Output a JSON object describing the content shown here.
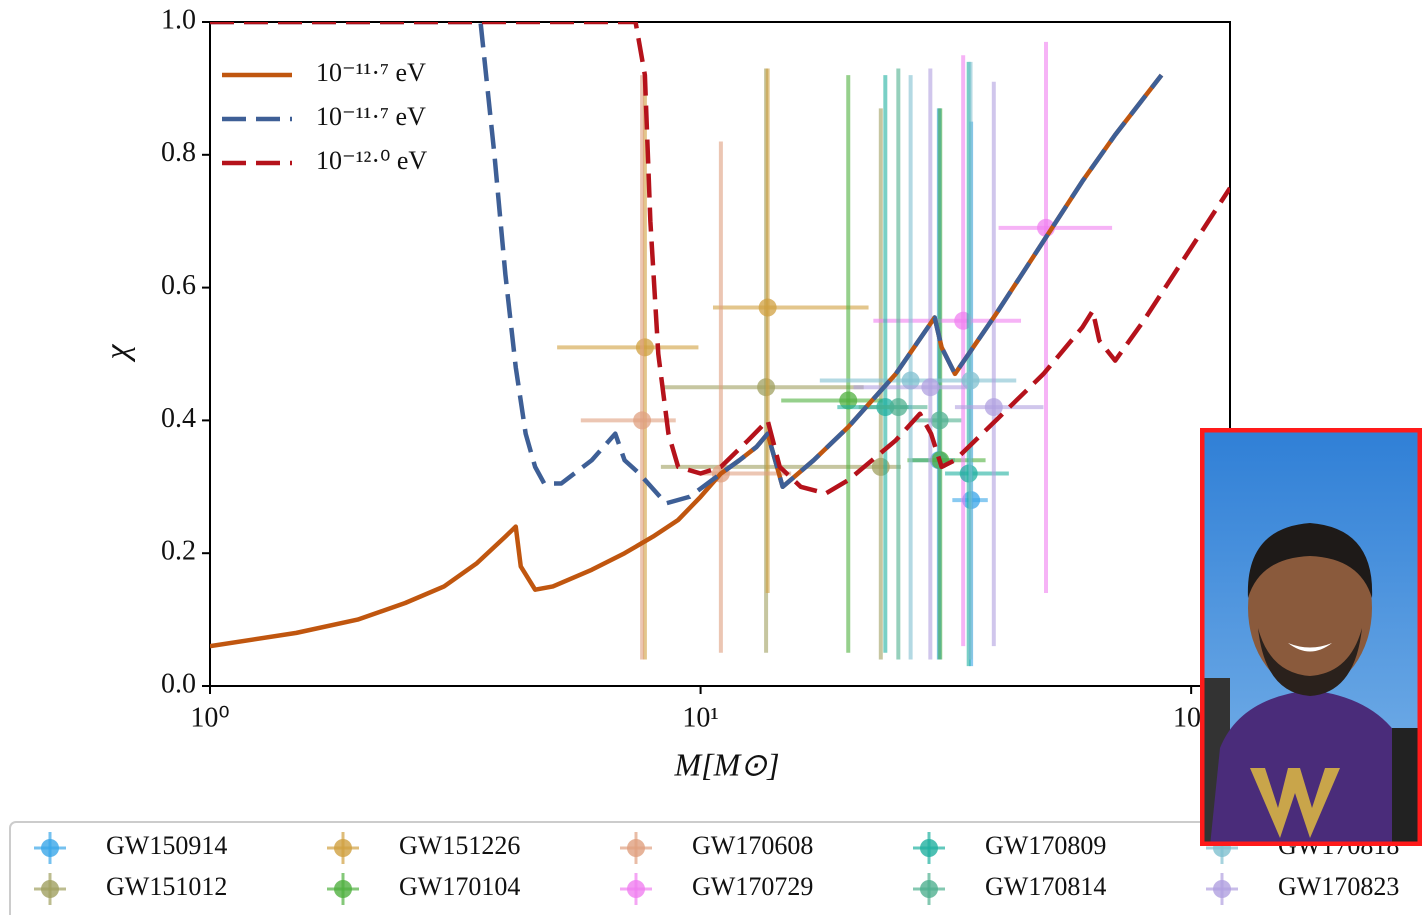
{
  "chart_data": {
    "type": "errorbar",
    "x_label": "M[M⊙]",
    "y_label": "χ",
    "log_x": true,
    "xlim": [
      1,
      120
    ],
    "ylim": [
      0,
      1
    ],
    "xticks": [
      {
        "value": 1,
        "label": "10⁰"
      },
      {
        "value": 10,
        "label": "10¹"
      },
      {
        "value": 100,
        "label": "10²"
      }
    ],
    "yticks": [
      {
        "value": 0,
        "label": "0.0"
      },
      0.2,
      0.4,
      0.6,
      0.8,
      {
        "value": 1,
        "label": "1.0"
      }
    ],
    "lines_legend": "upper left",
    "points_legend": "bottom",
    "lines": [
      {
        "name": "10⁻¹¹·⁷ eV",
        "color": "#c0560f",
        "linestyle": "solid",
        "x": [
          1,
          1.5,
          2,
          2.5,
          3,
          3.5,
          4,
          4.2,
          4.3,
          4.6,
          5,
          6,
          7,
          8,
          9,
          10,
          11,
          12,
          13,
          13.7,
          14.7,
          17,
          20,
          25,
          30,
          31,
          33,
          40,
          50,
          60,
          70,
          87
        ],
        "values": [
          0.06,
          0.08,
          0.1,
          0.125,
          0.15,
          0.185,
          0.225,
          0.24,
          0.18,
          0.145,
          0.15,
          0.175,
          0.2,
          0.225,
          0.25,
          0.285,
          0.32,
          0.34,
          0.36,
          0.38,
          0.3,
          0.34,
          0.39,
          0.47,
          0.555,
          0.51,
          0.47,
          0.56,
          0.67,
          0.76,
          0.83,
          0.92
        ]
      },
      {
        "name": "10⁻¹¹·⁷ eV",
        "color": "#3e5f96",
        "linestyle": "dashed",
        "x": [
          1,
          3.56,
          3.8,
          4,
          4.2,
          4.4,
          4.6,
          4.8,
          5.2,
          6,
          6.7,
          7,
          7.5,
          8.5,
          9.5,
          11,
          12,
          13,
          13.7,
          14.7,
          17,
          20,
          25,
          30,
          31,
          33,
          40,
          50,
          60,
          70,
          87
        ],
        "values": [
          1,
          1,
          0.8,
          0.62,
          0.48,
          0.38,
          0.33,
          0.305,
          0.305,
          0.34,
          0.38,
          0.34,
          0.32,
          0.275,
          0.285,
          0.32,
          0.34,
          0.36,
          0.38,
          0.3,
          0.34,
          0.39,
          0.47,
          0.555,
          0.51,
          0.47,
          0.56,
          0.67,
          0.76,
          0.83,
          0.92
        ]
      },
      {
        "name": "10⁻¹²·⁰ eV",
        "color": "#b5121b",
        "linestyle": "dashed",
        "x": [
          1,
          7.37,
          7.7,
          7.9,
          8.2,
          8.6,
          9,
          10,
          11,
          12.5,
          13.7,
          14.5,
          16,
          18,
          20,
          25,
          28,
          29.5,
          31,
          33,
          40,
          50,
          60,
          63,
          65,
          70,
          80,
          100,
          120
        ],
        "values": [
          1,
          1,
          0.92,
          0.7,
          0.5,
          0.38,
          0.33,
          0.32,
          0.33,
          0.37,
          0.4,
          0.33,
          0.3,
          0.29,
          0.31,
          0.37,
          0.41,
          0.38,
          0.33,
          0.34,
          0.4,
          0.47,
          0.54,
          0.565,
          0.52,
          0.49,
          0.55,
          0.66,
          0.75
        ]
      }
    ],
    "series": [
      {
        "name": "GW150914",
        "color": "#3aa6e8",
        "x": [
          35.6,
          30.6
        ],
        "values": [
          0.28,
          0.34
        ],
        "x_lower": [
          32.6,
          27
        ],
        "x_upper": [
          38.5,
          33
        ],
        "y_lower": [
          0.03,
          0.04
        ],
        "y_upper": [
          0.85,
          0.87
        ]
      },
      {
        "name": "GW151012",
        "color": "#a0a060",
        "x": [
          13.6,
          23.3
        ],
        "values": [
          0.45,
          0.33
        ],
        "x_lower": [
          8.4,
          8.3
        ],
        "x_upper": [
          21.5,
          25.6
        ],
        "y_lower": [
          0.05,
          0.04
        ],
        "y_upper": [
          0.93,
          0.87
        ]
      },
      {
        "name": "GW151226",
        "color": "#d0a040",
        "x": [
          13.7,
          7.7
        ],
        "values": [
          0.57,
          0.51
        ],
        "x_lower": [
          10.6,
          5.1
        ],
        "x_upper": [
          22,
          9.9
        ],
        "y_lower": [
          0.14,
          0.04
        ],
        "y_upper": [
          0.93,
          0.92
        ]
      },
      {
        "name": "GW170104",
        "color": "#50b040",
        "x": [
          30.8,
          20
        ],
        "values": [
          0.34,
          0.43
        ],
        "x_lower": [
          26.4,
          14.6
        ],
        "x_upper": [
          38.1,
          23.5
        ],
        "y_lower": [
          0.04,
          0.05
        ],
        "y_upper": [
          0.87,
          0.92
        ]
      },
      {
        "name": "GW170608",
        "color": "#e0a080",
        "x": [
          11,
          7.6
        ],
        "values": [
          0.32,
          0.4
        ],
        "x_lower": [
          10,
          5.7
        ],
        "x_upper": [
          15.3,
          8.9
        ],
        "y_lower": [
          0.05,
          0.04
        ],
        "y_upper": [
          0.82,
          0.92
        ]
      },
      {
        "name": "GW170729",
        "color": "#f080f0",
        "x": [
          50.6,
          34.3
        ],
        "values": [
          0.69,
          0.55
        ],
        "x_lower": [
          40.5,
          22.5
        ],
        "x_upper": [
          69,
          45
        ],
        "y_lower": [
          0.14,
          0.06
        ],
        "y_upper": [
          0.97,
          0.95
        ]
      },
      {
        "name": "GW170809",
        "color": "#20b0a0",
        "x": [
          35.2,
          23.8
        ],
        "values": [
          0.32,
          0.42
        ],
        "x_lower": [
          31.5,
          19
        ],
        "x_upper": [
          42.5,
          27
        ],
        "y_lower": [
          0.03,
          0.05
        ],
        "y_upper": [
          0.94,
          0.92
        ]
      },
      {
        "name": "GW170814",
        "color": "#50b090",
        "x": [
          30.7,
          25.3
        ],
        "values": [
          0.4,
          0.42
        ],
        "x_lower": [
          27,
          21
        ],
        "x_upper": [
          34,
          29
        ],
        "y_lower": [
          0.04,
          0.04
        ],
        "y_upper": [
          0.87,
          0.93
        ]
      },
      {
        "name": "GW170818",
        "color": "#80c0d0",
        "x": [
          35.5,
          26.8
        ],
        "values": [
          0.46,
          0.46
        ],
        "x_lower": [
          30,
          17.5
        ],
        "x_upper": [
          44,
          30
        ],
        "y_lower": [
          0.04,
          0.04
        ],
        "y_upper": [
          0.94,
          0.92
        ]
      },
      {
        "name": "GW170823",
        "color": "#b0a0e0",
        "x": [
          39.6,
          29.4
        ],
        "values": [
          0.42,
          0.45
        ],
        "x_lower": [
          33,
          20.5
        ],
        "x_upper": [
          50,
          35
        ],
        "y_lower": [
          0.06,
          0.04
        ],
        "y_upper": [
          0.91,
          0.93
        ]
      }
    ]
  }
}
